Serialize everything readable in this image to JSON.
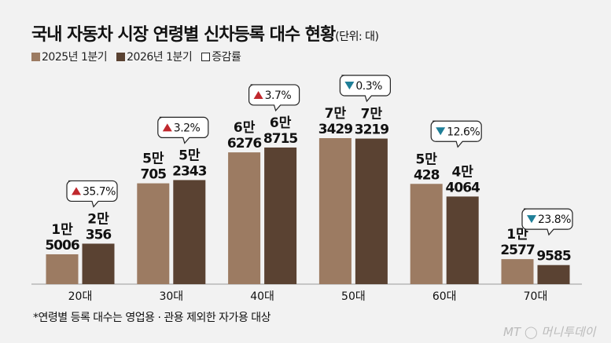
{
  "chart_data": {
    "type": "bar",
    "title": "국내 자동차 시장 연령별 신차등록 대수 현황",
    "unit": "(단위: 대)",
    "categories": [
      "20대",
      "30대",
      "40대",
      "50대",
      "60대",
      "70대"
    ],
    "series": [
      {
        "name": "2025년 1분기",
        "color": "#9c7b62",
        "values": [
          15006,
          50705,
          66276,
          73429,
          50428,
          12577
        ],
        "labels": [
          [
            "1만",
            "5006"
          ],
          [
            "5만",
            "705"
          ],
          [
            "6만",
            "6276"
          ],
          [
            "7만",
            "3429"
          ],
          [
            "5만",
            "428"
          ],
          [
            "1만",
            "2577"
          ]
        ]
      },
      {
        "name": "2026년 1분기",
        "color": "#5a4232",
        "values": [
          20356,
          52343,
          68715,
          73219,
          44064,
          9585
        ],
        "labels": [
          [
            "2만",
            "356"
          ],
          [
            "5만",
            "2343"
          ],
          [
            "6만",
            "8715"
          ],
          [
            "7만",
            "3219"
          ],
          [
            "4만",
            "4064"
          ],
          [
            "",
            "9585"
          ]
        ]
      }
    ],
    "change": {
      "name": "증감률",
      "values": [
        "35.7%",
        "3.2%",
        "3.7%",
        "0.3%",
        "12.6%",
        "23.8%"
      ],
      "direction": [
        "up",
        "up",
        "up",
        "down",
        "down",
        "down"
      ],
      "up_color": "#c0282d",
      "down_color": "#1f7f98"
    },
    "ylim": [
      0,
      80000
    ],
    "grid": false,
    "legend_position": "top-left",
    "footnote": "*연령별 등록 대수는 영업용 · 관용 제외한 자가용 대상"
  },
  "logo": "MT 머니투데이"
}
